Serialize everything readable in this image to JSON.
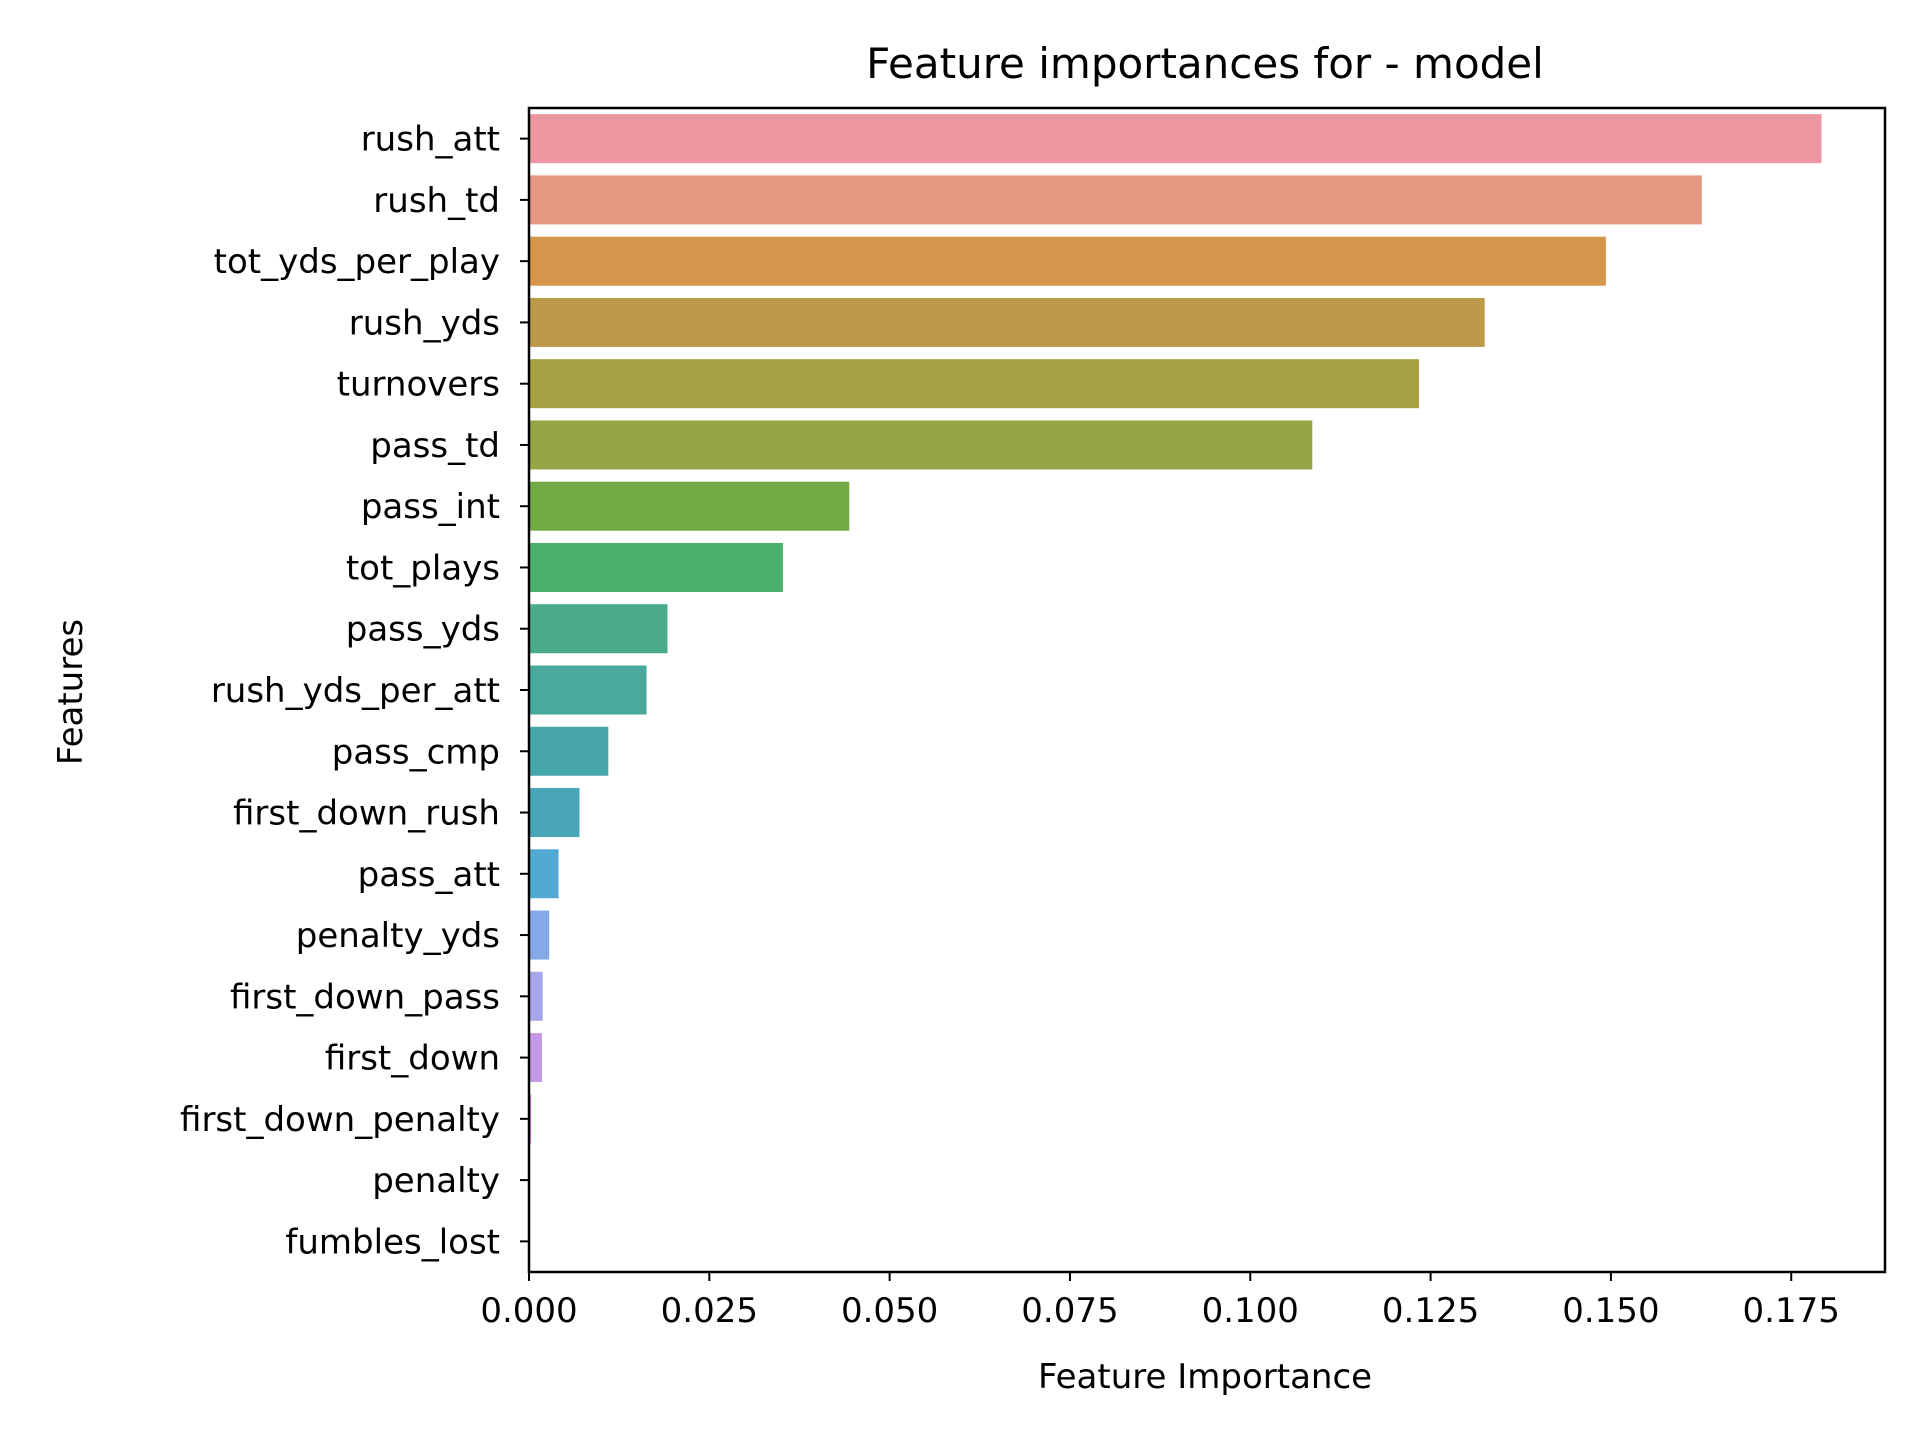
{
  "chart_data": {
    "type": "bar",
    "orientation": "horizontal",
    "title": "Feature importances for - model",
    "xlabel": "Feature Importance",
    "ylabel": "Features",
    "xlim": [
      0,
      0.188
    ],
    "xticks": [
      "0.000",
      "0.025",
      "0.050",
      "0.075",
      "0.100",
      "0.125",
      "0.150",
      "0.175"
    ],
    "grid": false,
    "legend": "none",
    "categories": [
      "rush_att",
      "rush_td",
      "tot_yds_per_play",
      "rush_yds",
      "turnovers",
      "pass_td",
      "pass_int",
      "tot_plays",
      "pass_yds",
      "rush_yds_per_att",
      "pass_cmp",
      "first_down_rush",
      "pass_att",
      "penalty_yds",
      "first_down_pass",
      "first_down",
      "first_down_penalty",
      "penalty",
      "fumbles_lost"
    ],
    "values": [
      0.1792,
      0.1626,
      0.1493,
      0.1325,
      0.1234,
      0.1086,
      0.0444,
      0.0352,
      0.0192,
      0.0163,
      0.011,
      0.007,
      0.0041,
      0.0028,
      0.0019,
      0.0018,
      0.0003,
      0.0001,
      0.0001
    ],
    "colors": [
      "#eb96a1",
      "#e69780",
      "#d3964a",
      "#bd9a4a",
      "#a7a044",
      "#94a645",
      "#72ab44",
      "#4bb06a",
      "#4aab88",
      "#49a99c",
      "#47a6a8",
      "#49a6b9",
      "#52aad2",
      "#84a8e8",
      "#a8a6ea",
      "#c49ae8",
      "#d48cd8",
      "#e58fcf",
      "#ea8fb5"
    ]
  }
}
